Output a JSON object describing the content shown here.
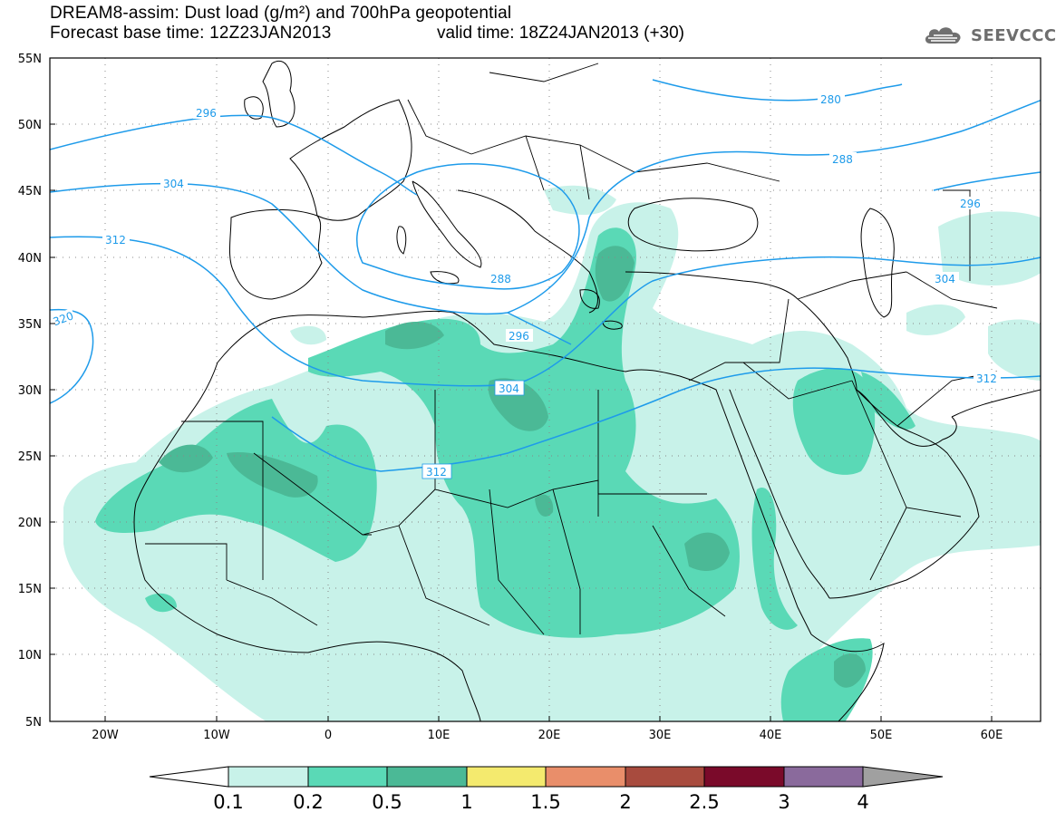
{
  "title": {
    "line1": "DREAM8-assim: Dust load (g/m²) and 700hPa geopotential",
    "line2a": "Forecast base time: 12Z23JAN2013",
    "line2b": "valid time: 18Z24JAN2013 (+30)"
  },
  "logo": {
    "text": "SEEVCCC",
    "icon": "cloud-logo-icon"
  },
  "axes": {
    "lat_labels": [
      "55N",
      "50N",
      "45N",
      "40N",
      "35N",
      "30N",
      "25N",
      "20N",
      "15N",
      "10N",
      "5N"
    ],
    "lon_labels": [
      "20W",
      "10W",
      "0",
      "10E",
      "20E",
      "30E",
      "40E",
      "50E",
      "60E"
    ]
  },
  "contours": {
    "labels": [
      "280",
      "288",
      "296",
      "304",
      "312",
      "320",
      "288",
      "296",
      "296",
      "304",
      "304",
      "312",
      "312"
    ]
  },
  "colorbar": {
    "ticks": [
      "0.1",
      "0.2",
      "0.5",
      "1",
      "1.5",
      "2",
      "2.5",
      "3",
      "4"
    ],
    "colors": [
      "#c8f2e9",
      "#5ad9b6",
      "#4bb996",
      "#f4ea6e",
      "#e98e6a",
      "#a84b3e",
      "#7a0a2a",
      "#8a6a9c"
    ]
  },
  "colors": {
    "light": "#c8f2e9",
    "mid": "#5ad9b6",
    "dark": "#4bb996",
    "contour": "#1e9bea",
    "coast": "#000000"
  }
}
